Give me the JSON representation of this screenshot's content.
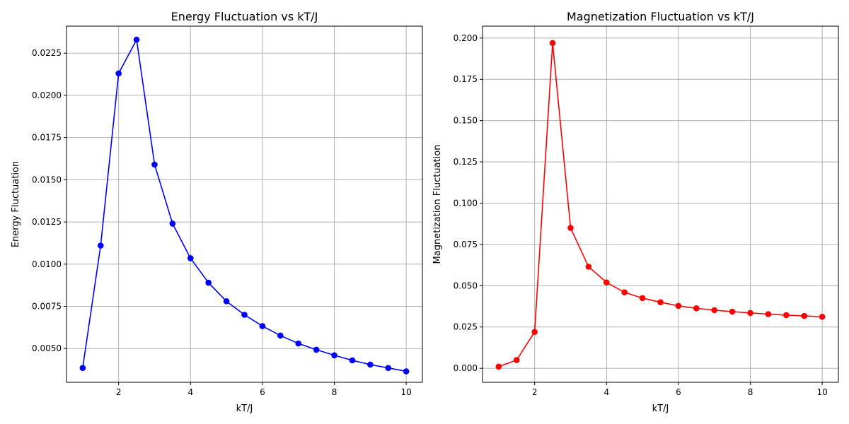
{
  "chart_data": [
    {
      "type": "line",
      "title": "Energy Fluctuation vs kT/J",
      "xlabel": "kT/J",
      "ylabel": "Energy Fluctuation",
      "xlim": [
        0.55,
        10.45
      ],
      "ylim": [
        0.003,
        0.0241
      ],
      "xticks": [
        2,
        4,
        6,
        8,
        10
      ],
      "xtick_labels": [
        "2",
        "4",
        "6",
        "8",
        "10"
      ],
      "yticks": [
        0.005,
        0.0075,
        0.01,
        0.0125,
        0.015,
        0.0175,
        0.02,
        0.0225
      ],
      "ytick_labels": [
        "0.0050",
        "0.0075",
        "0.0100",
        "0.0125",
        "0.0150",
        "0.0175",
        "0.0200",
        "0.0225"
      ],
      "grid": true,
      "color": "#0000ff",
      "series": [
        {
          "x": [
            1.0,
            1.5,
            2.0,
            2.5,
            3.0,
            3.5,
            4.0,
            4.5,
            5.0,
            5.5,
            6.0,
            6.5,
            7.0,
            7.5,
            8.0,
            8.5,
            9.0,
            9.5,
            10.0
          ],
          "values": [
            0.00385,
            0.0111,
            0.0213,
            0.0233,
            0.0159,
            0.0124,
            0.01035,
            0.0089,
            0.0078,
            0.007,
            0.00633,
            0.00577,
            0.0053,
            0.00493,
            0.0046,
            0.0043,
            0.00405,
            0.00385,
            0.00365
          ]
        }
      ]
    },
    {
      "type": "line",
      "title": "Magnetization Fluctuation vs kT/J",
      "xlabel": "kT/J",
      "ylabel": "Magnetization Fluctuation",
      "xlim": [
        0.55,
        10.45
      ],
      "ylim": [
        -0.0085,
        0.2072
      ],
      "xticks": [
        2,
        4,
        6,
        8,
        10
      ],
      "xtick_labels": [
        "2",
        "4",
        "6",
        "8",
        "10"
      ],
      "yticks": [
        0.0,
        0.025,
        0.05,
        0.075,
        0.1,
        0.125,
        0.15,
        0.175,
        0.2
      ],
      "ytick_labels": [
        "0.000",
        "0.025",
        "0.050",
        "0.075",
        "0.100",
        "0.125",
        "0.150",
        "0.175",
        "0.200"
      ],
      "grid": true,
      "color": "#ff0000",
      "series": [
        {
          "x": [
            1.0,
            1.5,
            2.0,
            2.5,
            3.0,
            3.5,
            4.0,
            4.5,
            5.0,
            5.5,
            6.0,
            6.5,
            7.0,
            7.5,
            8.0,
            8.5,
            9.0,
            9.5,
            10.0
          ],
          "values": [
            0.001,
            0.005,
            0.022,
            0.197,
            0.085,
            0.0615,
            0.052,
            0.046,
            0.0425,
            0.04,
            0.0378,
            0.0363,
            0.0352,
            0.0343,
            0.0335,
            0.0328,
            0.0322,
            0.0317,
            0.0312
          ]
        }
      ]
    }
  ]
}
